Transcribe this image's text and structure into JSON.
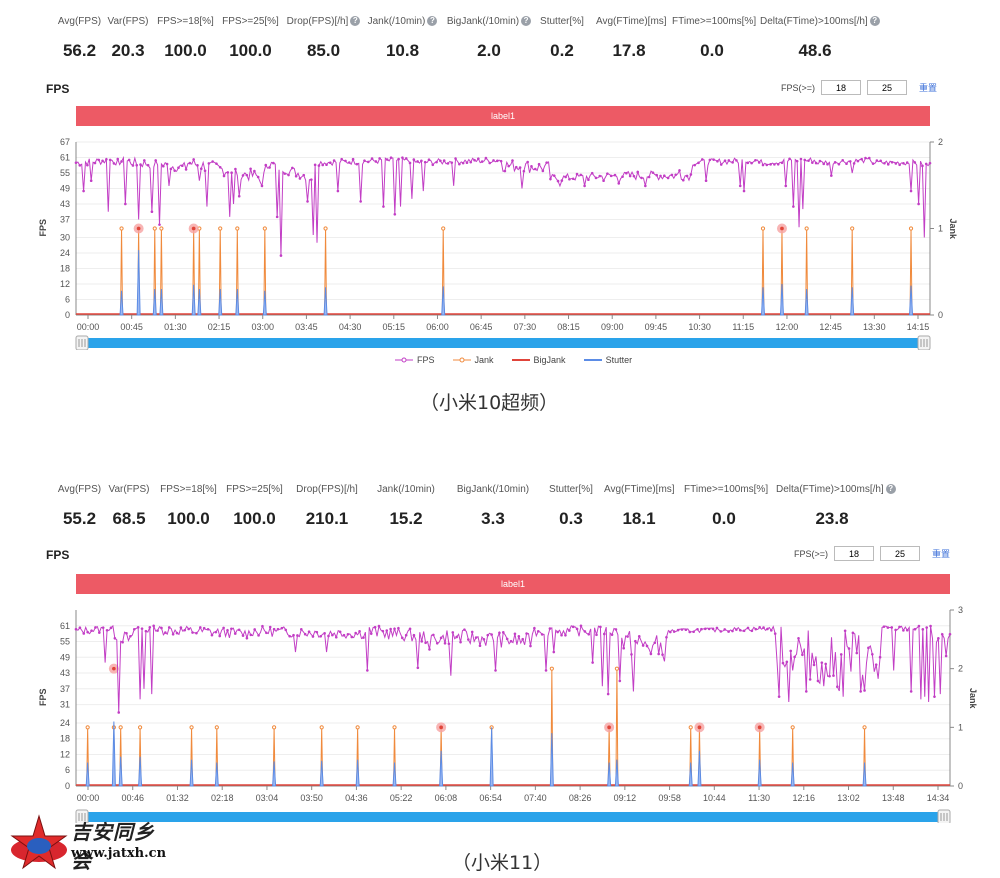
{
  "panels": [
    {
      "stats": [
        {
          "label": "Avg(FPS)",
          "value": "56.2"
        },
        {
          "label": "Var(FPS)",
          "value": "20.3"
        },
        {
          "label": "FPS>=18[%]",
          "value": "100.0"
        },
        {
          "label": "FPS>=25[%]",
          "value": "100.0"
        },
        {
          "label": "Drop(FPS)[/h]",
          "value": "85.0",
          "help": true
        },
        {
          "label": "Jank(/10min)",
          "value": "10.8",
          "help": true
        },
        {
          "label": "BigJank(/10min)",
          "value": "2.0",
          "help": true
        },
        {
          "label": "Stutter[%]",
          "value": "0.2"
        },
        {
          "label": "Avg(FTime)[ms]",
          "value": "17.8"
        },
        {
          "label": "FTime>=100ms[%]",
          "value": "0.0"
        },
        {
          "label": "Delta(FTime)>100ms[/h]",
          "value": "48.6",
          "help": true
        }
      ],
      "fps_title": "FPS",
      "threshold_label": "FPS(>=)",
      "threshold_values": [
        "18",
        "25"
      ],
      "reset_label": "重置",
      "label_bar": "label1",
      "caption": "（小米10超频）",
      "legend": [
        {
          "name": "FPS",
          "color": "#c23ec5"
        },
        {
          "name": "Jank",
          "color": "#f08a3c"
        },
        {
          "name": "BigJank",
          "color": "#e0443a"
        },
        {
          "name": "Stutter",
          "color": "#5b8ce6"
        }
      ]
    },
    {
      "stats": [
        {
          "label": "Avg(FPS)",
          "value": "55.2"
        },
        {
          "label": "Var(FPS)",
          "value": "68.5"
        },
        {
          "label": "FPS>=18[%]",
          "value": "100.0"
        },
        {
          "label": "FPS>=25[%]",
          "value": "100.0"
        },
        {
          "label": "Drop(FPS)[/h]",
          "value": "210.1"
        },
        {
          "label": "Jank(/10min)",
          "value": "15.2"
        },
        {
          "label": "BigJank(/10min)",
          "value": "3.3"
        },
        {
          "label": "Stutter[%]",
          "value": "0.3"
        },
        {
          "label": "Avg(FTime)[ms]",
          "value": "18.1"
        },
        {
          "label": "FTime>=100ms[%]",
          "value": "0.0"
        },
        {
          "label": "Delta(FTime)>100ms[/h]",
          "value": "23.8",
          "help": true
        }
      ],
      "fps_title": "FPS",
      "threshold_label": "FPS(>=)",
      "threshold_values": [
        "18",
        "25"
      ],
      "reset_label": "重置",
      "label_bar": "label1",
      "caption": "（小米11）"
    }
  ],
  "watermark": {
    "line1": "吉安同乡会",
    "line2": "www.jatxh.cn"
  },
  "colors": {
    "fps": "#c23ec5",
    "jank": "#f08a3c",
    "bigjank": "#e0443a",
    "stutter": "#5b8ce6",
    "slider": "#2aa3ea",
    "label_bar": "#ed5a65"
  },
  "chart_data": [
    {
      "type": "line",
      "xlabel": "",
      "ylabel": "FPS",
      "y2label": "Jank",
      "yticks": [
        0,
        6,
        12,
        18,
        24,
        30,
        37,
        43,
        49,
        55,
        61,
        67
      ],
      "ylim": [
        0,
        67
      ],
      "y2ticks": [
        0,
        1,
        2
      ],
      "y2lim": [
        0,
        2
      ],
      "xticks": [
        "00:00",
        "00:45",
        "01:30",
        "02:15",
        "03:00",
        "03:45",
        "04:30",
        "05:15",
        "06:00",
        "06:45",
        "07:30",
        "08:15",
        "09:00",
        "09:45",
        "10:30",
        "11:15",
        "12:00",
        "12:45",
        "13:30",
        "14:15"
      ],
      "x_end_seconds": 900,
      "series": [
        {
          "name": "FPS",
          "segments": [
            [
              0,
              59,
              60,
              1.5
            ],
            [
              40,
              60,
              57,
              2.0
            ],
            [
              118,
              59,
              53,
              2.5
            ],
            [
              200,
              59,
              53,
              2.0
            ],
            [
              250,
              59,
              60,
              1.2
            ],
            [
              350,
              59,
              60,
              1.2
            ],
            [
              450,
              58,
              57,
              2.5
            ],
            [
              500,
              53,
              54,
              1.5
            ],
            [
              580,
              54,
              54,
              1.8
            ],
            [
              650,
              59,
              60,
              1.2
            ],
            [
              720,
              59,
              60,
              1.2
            ],
            [
              780,
              59,
              60,
              1.0
            ],
            [
              840,
              59,
              59,
              1.0
            ],
            [
              880,
              59,
              58,
              1.2
            ]
          ],
          "dips": [
            [
              8,
              48
            ],
            [
              16,
              52
            ],
            [
              33,
              40
            ],
            [
              52,
              43
            ],
            [
              66,
              37
            ],
            [
              80,
              40
            ],
            [
              88,
              35
            ],
            [
              97,
              50
            ],
            [
              130,
              52
            ],
            [
              138,
              42
            ],
            [
              162,
              38
            ],
            [
              166,
              43
            ],
            [
              172,
              46
            ],
            [
              196,
              50
            ],
            [
              212,
              38
            ],
            [
              216,
              23
            ],
            [
              244,
              44
            ],
            [
              250,
              31
            ],
            [
              254,
              28
            ],
            [
              276,
              48
            ],
            [
              300,
              44
            ],
            [
              324,
              42
            ],
            [
              336,
              39
            ],
            [
              342,
              42
            ],
            [
              354,
              45
            ],
            [
              366,
              48
            ],
            [
              398,
              50
            ],
            [
              470,
              49
            ],
            [
              510,
              50
            ],
            [
              536,
              50
            ],
            [
              556,
              52
            ],
            [
              572,
              51
            ],
            [
              600,
              50
            ],
            [
              636,
              56
            ],
            [
              664,
              52
            ],
            [
              700,
              50
            ],
            [
              704,
              48
            ],
            [
              748,
              50
            ],
            [
              756,
              42
            ],
            [
              762,
              34
            ],
            [
              766,
              41
            ],
            [
              796,
              54
            ],
            [
              818,
              55
            ],
            [
              880,
              48
            ],
            [
              888,
              43
            ],
            [
              894,
              30
            ]
          ]
        },
        {
          "name": "Jank",
          "values": [
            [
              48,
              1
            ],
            [
              66,
              1
            ],
            [
              83,
              1
            ],
            [
              90,
              1
            ],
            [
              124,
              1
            ],
            [
              130,
              1
            ],
            [
              152,
              1
            ],
            [
              170,
              1
            ],
            [
              199,
              1
            ],
            [
              263,
              1
            ],
            [
              387,
              1
            ],
            [
              724,
              1
            ],
            [
              744,
              1
            ],
            [
              770,
              1
            ],
            [
              818,
              1
            ],
            [
              880,
              1
            ]
          ],
          "unit": "right-axis"
        },
        {
          "name": "BigJank",
          "values": [
            [
              66,
              1
            ],
            [
              124,
              1
            ],
            [
              744,
              1
            ]
          ],
          "unit": "right-axis",
          "markers": "circle"
        },
        {
          "name": "Stutter",
          "values": [
            [
              48,
              0.28
            ],
            [
              66,
              0.75
            ],
            [
              83,
              0.3
            ],
            [
              90,
              0.3
            ],
            [
              124,
              0.35
            ],
            [
              130,
              0.3
            ],
            [
              152,
              0.3
            ],
            [
              170,
              0.3
            ],
            [
              199,
              0.28
            ],
            [
              263,
              0.32
            ],
            [
              387,
              0.33
            ],
            [
              724,
              0.32
            ],
            [
              744,
              0.36
            ],
            [
              770,
              0.3
            ],
            [
              818,
              0.32
            ],
            [
              880,
              0.34
            ]
          ],
          "unit": "right-axis"
        }
      ],
      "slider": [
        0,
        1
      ]
    },
    {
      "type": "line",
      "xlabel": "",
      "ylabel": "FPS",
      "y2label": "Jank",
      "yticks": [
        0,
        6,
        12,
        18,
        24,
        31,
        37,
        43,
        49,
        55,
        61
      ],
      "ylim": [
        0,
        67
      ],
      "y2ticks": [
        0,
        1,
        2,
        3
      ],
      "y2lim": [
        0,
        3
      ],
      "xticks": [
        "00:00",
        "00:46",
        "01:32",
        "02:18",
        "03:04",
        "03:50",
        "04:36",
        "05:22",
        "06:08",
        "06:54",
        "07:40",
        "08:26",
        "09:12",
        "09:58",
        "10:44",
        "11:30",
        "12:16",
        "13:02",
        "13:48",
        "14:34"
      ],
      "x_end_seconds": 900,
      "series": [
        {
          "name": "FPS",
          "segments": [
            [
              0,
              59,
              60,
              1.5
            ],
            [
              40,
              58,
              55,
              2.5
            ],
            [
              60,
              60,
              58,
              2.0
            ],
            [
              180,
              59,
              58,
              2.0
            ],
            [
              300,
              59,
              56,
              2.5
            ],
            [
              380,
              57,
              55,
              3.0
            ],
            [
              470,
              59,
              59,
              2.0
            ],
            [
              560,
              55,
              52,
              5
            ],
            [
              610,
              59,
              60,
              0.8
            ],
            [
              720,
              55,
              45,
              10
            ],
            [
              790,
              50,
              45,
              12
            ],
            [
              830,
              60,
              60,
              1.0
            ],
            [
              880,
              58,
              50,
              6
            ],
            [
              900,
              58,
              58,
              2
            ]
          ],
          "dips": [
            [
              30,
              47
            ],
            [
              44,
              28
            ],
            [
              66,
              33
            ],
            [
              70,
              37
            ],
            [
              78,
              35
            ],
            [
              226,
              51
            ],
            [
              258,
              51
            ],
            [
              300,
              44
            ],
            [
              352,
              45
            ],
            [
              364,
              52
            ],
            [
              386,
              42
            ],
            [
              432,
              44
            ],
            [
              484,
              44
            ],
            [
              492,
              51
            ],
            [
              532,
              47
            ],
            [
              542,
              38
            ],
            [
              548,
              35
            ],
            [
              560,
              40
            ],
            [
              574,
              36
            ],
            [
              604,
              50
            ],
            [
              724,
              34
            ],
            [
              734,
              32
            ],
            [
              752,
              36
            ],
            [
              770,
              38
            ],
            [
              790,
              34
            ],
            [
              808,
              36
            ],
            [
              842,
              44
            ],
            [
              860,
              36
            ],
            [
              870,
              33
            ],
            [
              874,
              34
            ],
            [
              878,
              32
            ],
            [
              884,
              34
            ],
            [
              890,
              35
            ]
          ]
        },
        {
          "name": "Jank",
          "values": [
            [
              12,
              1
            ],
            [
              39,
              1
            ],
            [
              46,
              1
            ],
            [
              66,
              1
            ],
            [
              119,
              1
            ],
            [
              145,
              1
            ],
            [
              204,
              1
            ],
            [
              253,
              1
            ],
            [
              290,
              1
            ],
            [
              328,
              1
            ],
            [
              376,
              1
            ],
            [
              428,
              1
            ],
            [
              490,
              2
            ],
            [
              549,
              1
            ],
            [
              557,
              2
            ],
            [
              633,
              1
            ],
            [
              642,
              1
            ],
            [
              704,
              1
            ],
            [
              738,
              1
            ],
            [
              812,
              1
            ]
          ],
          "unit": "right-axis"
        },
        {
          "name": "BigJank",
          "values": [
            [
              39,
              2
            ],
            [
              376,
              1
            ],
            [
              549,
              1
            ],
            [
              642,
              1
            ],
            [
              704,
              1
            ]
          ],
          "unit": "right-axis",
          "markers": "circle"
        },
        {
          "name": "Stutter",
          "values": [
            [
              12,
              0.4
            ],
            [
              39,
              1.1
            ],
            [
              46,
              0.5
            ],
            [
              66,
              0.5
            ],
            [
              119,
              0.45
            ],
            [
              145,
              0.4
            ],
            [
              204,
              0.42
            ],
            [
              253,
              0.43
            ],
            [
              290,
              0.45
            ],
            [
              328,
              0.4
            ],
            [
              376,
              0.6
            ],
            [
              428,
              1.0
            ],
            [
              490,
              0.9
            ],
            [
              549,
              0.4
            ],
            [
              557,
              0.45
            ],
            [
              633,
              0.4
            ],
            [
              642,
              0.6
            ],
            [
              704,
              0.45
            ],
            [
              738,
              0.4
            ],
            [
              812,
              0.4
            ]
          ],
          "unit": "right-axis"
        }
      ],
      "slider": [
        0,
        1
      ]
    }
  ]
}
